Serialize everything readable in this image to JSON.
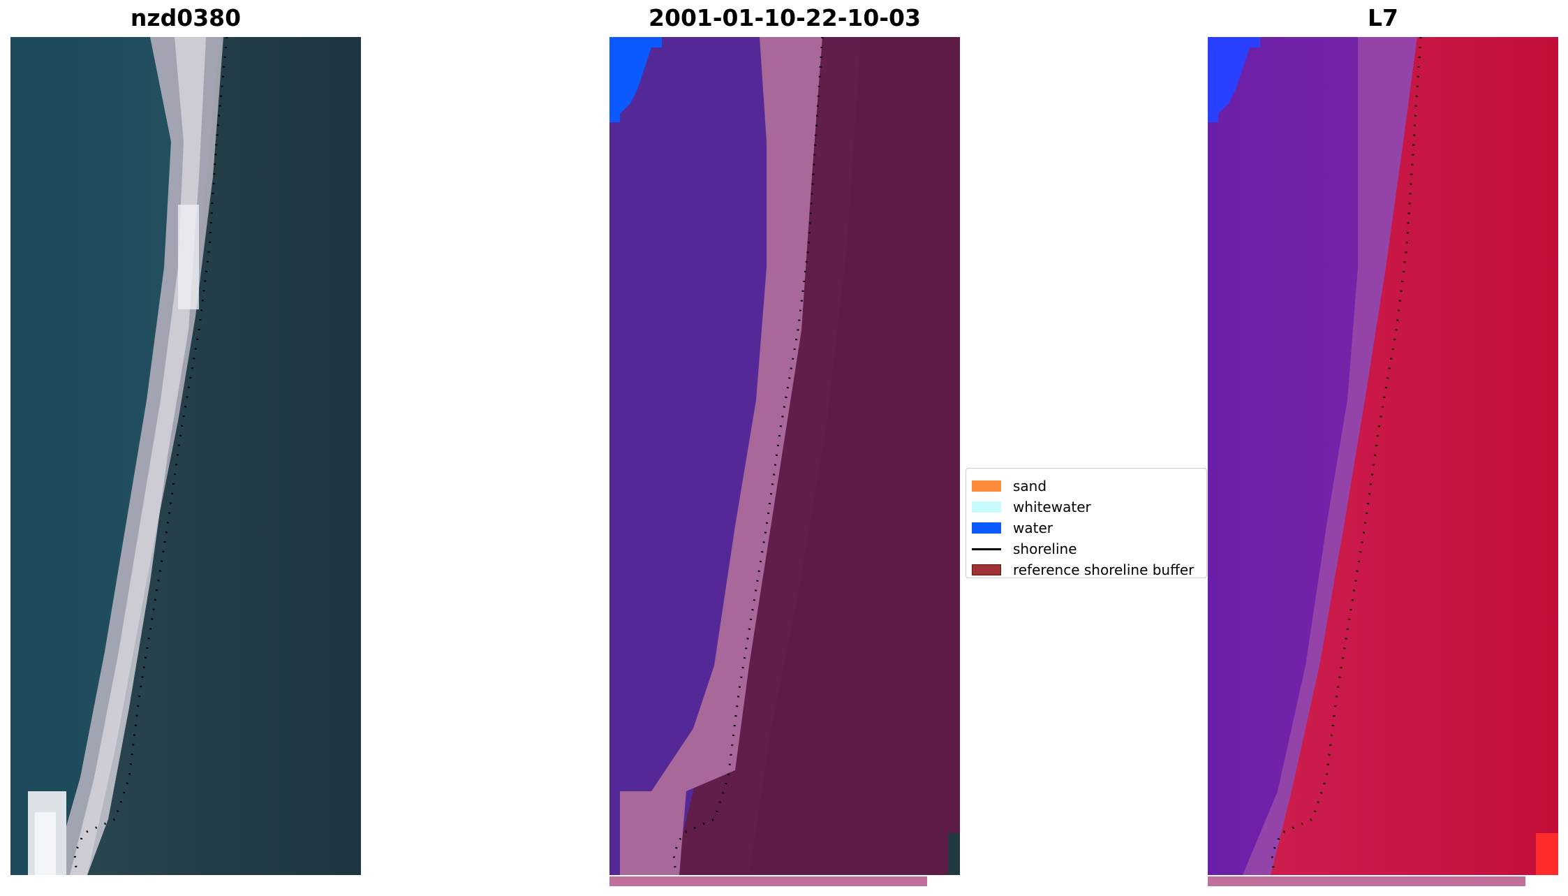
{
  "panels": [
    {
      "title": "nzd0380"
    },
    {
      "title": "2001-01-10-22-10-03"
    },
    {
      "title": "L7"
    }
  ],
  "legend": {
    "items": [
      {
        "label": "sand",
        "color": "#ff8c3c"
      },
      {
        "label": "whitewater",
        "color": "#c8fcfc"
      },
      {
        "label": "water",
        "color": "#0a5aff"
      },
      {
        "label": "shoreline",
        "color": "#000000"
      },
      {
        "label": "reference shoreline buffer",
        "color": "#a03434"
      }
    ]
  },
  "colors": {
    "rgb_sea": "#1e4a5a",
    "rgb_land": "#223a44",
    "rgb_beach": "#c8c4cc",
    "class_water_dark": "#542896",
    "class_land": "#621e4a",
    "class_beach": "#a8689a",
    "class_water": "#0a5aff",
    "mndwi_low": "#6a1ea6",
    "mndwi_high": "#c6103e",
    "mndwi_beach": "#9a4aa8"
  }
}
